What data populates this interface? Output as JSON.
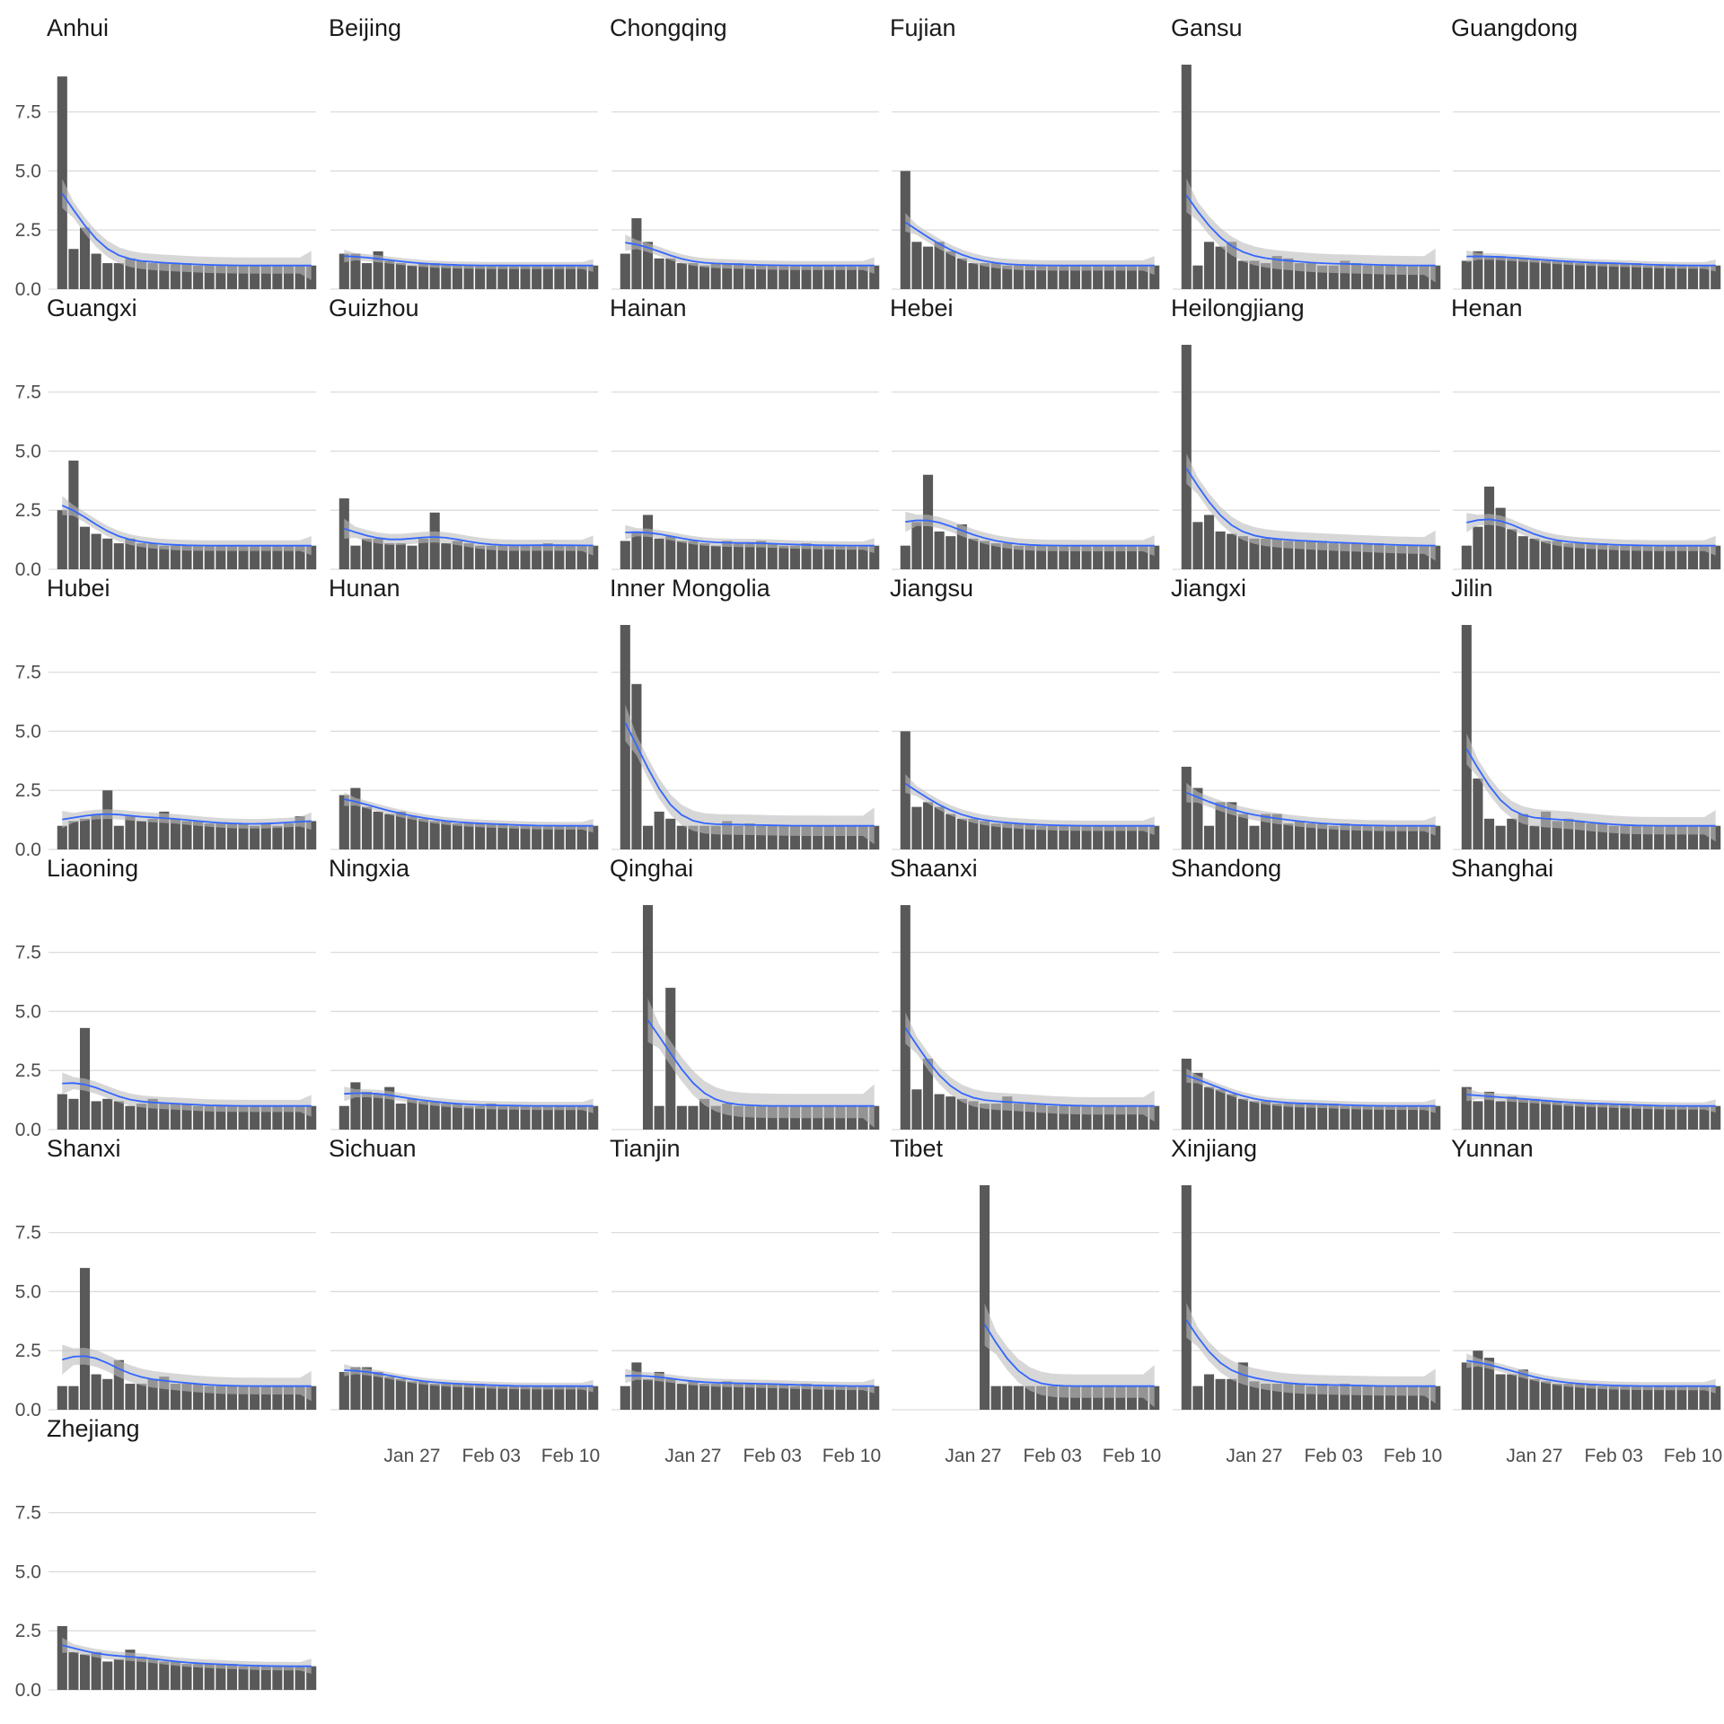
{
  "chart_data": {
    "type": "bar",
    "title": "",
    "xlabel": "",
    "ylabel": "",
    "ylim": [
      0,
      9.5
    ],
    "y_ticks": [
      "0.0",
      "2.5",
      "5.0",
      "7.5"
    ],
    "x_tick_labels": [
      "Jan 27",
      "Feb 03",
      "Feb 10"
    ],
    "x_tick_positions": [
      6,
      13,
      20
    ],
    "days": 23,
    "grid": true,
    "overlay": "loess smooth with confidence band",
    "colors": {
      "bars": "#595959",
      "smooth": "#3366ff",
      "band": "#bdbdbd",
      "grid": "#dcdcdc"
    },
    "panels": [
      {
        "name": "Anhui",
        "values": [
          9.0,
          1.7,
          2.6,
          1.5,
          1.1,
          1.1,
          1.3,
          1.2,
          1.1,
          1.1,
          1.1,
          1.1,
          1.0,
          1.0,
          1.0,
          1.0,
          1.0,
          1.0,
          1.0,
          1.0,
          1.0,
          1.0,
          1.0
        ]
      },
      {
        "name": "Beijing",
        "values": [
          1.5,
          1.5,
          1.1,
          1.6,
          1.2,
          1.1,
          1.0,
          1.1,
          1.1,
          1.0,
          1.0,
          1.0,
          1.0,
          1.0,
          1.0,
          1.0,
          1.0,
          1.0,
          1.0,
          1.0,
          1.0,
          1.0,
          1.0
        ]
      },
      {
        "name": "Chongqing",
        "values": [
          1.5,
          3.0,
          2.0,
          1.3,
          1.3,
          1.1,
          1.1,
          1.0,
          1.1,
          1.1,
          1.1,
          1.0,
          1.0,
          1.0,
          1.0,
          1.0,
          1.0,
          1.0,
          1.0,
          1.0,
          1.0,
          1.0,
          1.0
        ]
      },
      {
        "name": "Fujian",
        "values": [
          5.0,
          2.0,
          1.8,
          2.0,
          1.6,
          1.3,
          1.1,
          1.1,
          1.1,
          1.0,
          1.0,
          1.0,
          1.0,
          1.0,
          1.0,
          1.0,
          1.0,
          1.0,
          1.0,
          1.0,
          1.0,
          1.0,
          1.0
        ]
      },
      {
        "name": "Gansu",
        "values": [
          9.5,
          1.0,
          2.0,
          1.8,
          2.0,
          1.2,
          1.2,
          1.1,
          1.4,
          1.3,
          1.1,
          1.1,
          1.0,
          1.0,
          1.2,
          1.1,
          1.0,
          1.0,
          1.0,
          1.0,
          1.0,
          1.0,
          1.0
        ]
      },
      {
        "name": "Guangdong",
        "values": [
          1.2,
          1.6,
          1.4,
          1.4,
          1.3,
          1.3,
          1.3,
          1.2,
          1.2,
          1.2,
          1.1,
          1.1,
          1.1,
          1.1,
          1.1,
          1.1,
          1.0,
          1.0,
          1.0,
          1.0,
          1.0,
          1.0,
          1.0
        ]
      },
      {
        "name": "Guangxi",
        "values": [
          2.5,
          4.6,
          1.8,
          1.5,
          1.3,
          1.1,
          1.3,
          1.1,
          1.1,
          1.0,
          1.0,
          1.0,
          1.0,
          1.0,
          1.0,
          1.0,
          1.0,
          1.0,
          1.0,
          1.0,
          1.0,
          1.0,
          1.0
        ]
      },
      {
        "name": "Guizhou",
        "values": [
          3.0,
          1.0,
          1.3,
          1.3,
          1.1,
          1.1,
          1.0,
          1.3,
          2.4,
          1.1,
          1.2,
          1.1,
          1.0,
          1.0,
          1.0,
          1.0,
          1.0,
          1.0,
          1.1,
          1.0,
          1.0,
          1.0,
          1.0
        ]
      },
      {
        "name": "Hainan",
        "values": [
          1.2,
          1.6,
          2.3,
          1.3,
          1.4,
          1.2,
          1.2,
          1.1,
          1.0,
          1.2,
          1.1,
          1.1,
          1.2,
          1.1,
          1.0,
          1.0,
          1.1,
          1.0,
          1.0,
          1.0,
          1.0,
          1.0,
          1.0
        ]
      },
      {
        "name": "Hebei",
        "values": [
          1.0,
          2.0,
          4.0,
          1.6,
          1.4,
          1.9,
          1.3,
          1.2,
          1.1,
          1.1,
          1.0,
          1.0,
          1.0,
          1.0,
          1.0,
          1.0,
          1.0,
          1.0,
          1.0,
          1.0,
          1.0,
          1.0,
          1.0
        ]
      },
      {
        "name": "Heilongjiang",
        "values": [
          9.5,
          2.0,
          2.3,
          1.6,
          1.5,
          1.4,
          1.3,
          1.3,
          1.3,
          1.2,
          1.2,
          1.2,
          1.2,
          1.1,
          1.1,
          1.1,
          1.1,
          1.1,
          1.0,
          1.0,
          1.0,
          1.0,
          1.0
        ]
      },
      {
        "name": "Henan",
        "values": [
          1.0,
          1.8,
          3.5,
          2.6,
          1.7,
          1.4,
          1.3,
          1.2,
          1.2,
          1.1,
          1.1,
          1.1,
          1.1,
          1.0,
          1.0,
          1.0,
          1.0,
          1.0,
          1.0,
          1.0,
          1.0,
          1.0,
          1.0
        ]
      },
      {
        "name": "Hubei",
        "values": [
          1.0,
          1.2,
          1.3,
          1.5,
          2.5,
          1.0,
          1.4,
          1.2,
          1.3,
          1.6,
          1.3,
          1.2,
          1.2,
          1.1,
          1.1,
          1.1,
          1.1,
          1.0,
          1.1,
          1.0,
          1.1,
          1.4,
          1.2
        ]
      },
      {
        "name": "Hunan",
        "values": [
          2.3,
          2.6,
          1.8,
          1.6,
          1.5,
          1.6,
          1.4,
          1.3,
          1.2,
          1.2,
          1.1,
          1.1,
          1.1,
          1.1,
          1.1,
          1.0,
          1.0,
          1.0,
          1.0,
          1.0,
          1.0,
          1.0,
          1.0
        ]
      },
      {
        "name": "Inner Mongolia",
        "values": [
          9.5,
          7.0,
          1.0,
          1.6,
          1.3,
          1.0,
          1.0,
          1.0,
          1.0,
          1.2,
          1.0,
          1.1,
          1.0,
          1.0,
          1.0,
          1.0,
          1.0,
          1.0,
          1.0,
          1.0,
          1.0,
          1.0,
          1.0
        ]
      },
      {
        "name": "Jiangsu",
        "values": [
          5.0,
          1.8,
          2.0,
          1.8,
          1.5,
          1.3,
          1.3,
          1.2,
          1.1,
          1.1,
          1.1,
          1.1,
          1.0,
          1.0,
          1.0,
          1.0,
          1.0,
          1.0,
          1.0,
          1.0,
          1.0,
          1.0,
          1.0
        ]
      },
      {
        "name": "Jiangxi",
        "values": [
          3.5,
          2.6,
          1.0,
          2.0,
          2.0,
          1.5,
          1.0,
          1.5,
          1.5,
          1.1,
          1.2,
          1.1,
          1.1,
          1.0,
          1.1,
          1.0,
          1.0,
          1.0,
          1.0,
          1.0,
          1.0,
          1.0,
          1.0
        ]
      },
      {
        "name": "Jilin",
        "values": [
          9.5,
          3.0,
          1.3,
          1.0,
          1.3,
          1.5,
          1.0,
          1.6,
          1.2,
          1.3,
          1.2,
          1.1,
          1.1,
          1.0,
          1.0,
          1.0,
          1.0,
          1.0,
          1.0,
          1.0,
          1.0,
          1.0,
          1.0
        ]
      },
      {
        "name": "Liaoning",
        "values": [
          1.5,
          1.3,
          4.3,
          1.2,
          1.3,
          1.2,
          1.0,
          1.1,
          1.3,
          1.1,
          1.1,
          1.1,
          1.0,
          1.0,
          1.0,
          1.0,
          1.0,
          1.0,
          1.0,
          1.0,
          1.0,
          1.0,
          1.0
        ]
      },
      {
        "name": "Ningxia",
        "values": [
          1.0,
          2.0,
          1.6,
          1.5,
          1.8,
          1.1,
          1.3,
          1.2,
          1.2,
          1.1,
          1.1,
          1.0,
          1.0,
          1.1,
          1.0,
          1.0,
          1.0,
          1.0,
          1.0,
          1.0,
          1.0,
          1.0,
          1.0
        ]
      },
      {
        "name": "Qinghai",
        "values": [
          null,
          null,
          9.5,
          1.0,
          6.0,
          1.0,
          1.0,
          1.3,
          1.0,
          1.1,
          1.0,
          1.0,
          1.0,
          1.0,
          1.0,
          1.0,
          1.0,
          1.0,
          1.0,
          1.0,
          1.0,
          1.0,
          1.0
        ]
      },
      {
        "name": "Shaanxi",
        "values": [
          9.5,
          1.7,
          3.0,
          1.5,
          1.4,
          1.3,
          1.2,
          1.1,
          1.1,
          1.4,
          1.1,
          1.1,
          1.1,
          1.0,
          1.0,
          1.0,
          1.0,
          1.0,
          1.0,
          1.0,
          1.0,
          1.0,
          1.0
        ]
      },
      {
        "name": "Shandong",
        "values": [
          3.0,
          2.4,
          1.8,
          1.7,
          1.5,
          1.3,
          1.2,
          1.2,
          1.1,
          1.1,
          1.1,
          1.1,
          1.1,
          1.1,
          1.0,
          1.0,
          1.0,
          1.0,
          1.0,
          1.0,
          1.0,
          1.0,
          1.0
        ]
      },
      {
        "name": "Shanghai",
        "values": [
          1.8,
          1.2,
          1.6,
          1.2,
          1.4,
          1.3,
          1.3,
          1.2,
          1.2,
          1.1,
          1.1,
          1.1,
          1.1,
          1.1,
          1.1,
          1.0,
          1.0,
          1.0,
          1.0,
          1.0,
          1.0,
          1.0,
          1.0
        ]
      },
      {
        "name": "Shanxi",
        "values": [
          1.0,
          1.0,
          6.0,
          1.5,
          1.3,
          2.1,
          1.1,
          1.1,
          1.3,
          1.4,
          1.1,
          1.1,
          1.1,
          1.0,
          1.0,
          1.0,
          1.0,
          1.0,
          1.0,
          1.0,
          1.0,
          1.0,
          1.0
        ]
      },
      {
        "name": "Sichuan",
        "values": [
          1.6,
          1.8,
          1.8,
          1.6,
          1.4,
          1.3,
          1.2,
          1.2,
          1.1,
          1.1,
          1.1,
          1.1,
          1.1,
          1.0,
          1.0,
          1.0,
          1.0,
          1.0,
          1.0,
          1.0,
          1.0,
          1.0,
          1.0
        ]
      },
      {
        "name": "Tianjin",
        "values": [
          1.0,
          2.0,
          1.3,
          1.6,
          1.3,
          1.1,
          1.2,
          1.1,
          1.1,
          1.2,
          1.1,
          1.1,
          1.1,
          1.1,
          1.1,
          1.0,
          1.1,
          1.0,
          1.0,
          1.0,
          1.0,
          1.0,
          1.0
        ]
      },
      {
        "name": "Tibet",
        "values": [
          null,
          null,
          null,
          null,
          null,
          null,
          null,
          9.5,
          1.0,
          1.0,
          1.0,
          1.0,
          1.0,
          1.0,
          1.0,
          1.0,
          1.0,
          1.0,
          1.0,
          1.0,
          1.0,
          1.0,
          1.0
        ]
      },
      {
        "name": "Xinjiang",
        "values": [
          9.5,
          1.0,
          1.5,
          1.3,
          1.3,
          2.0,
          1.2,
          1.1,
          1.1,
          1.1,
          1.1,
          1.0,
          1.1,
          1.0,
          1.1,
          1.0,
          1.0,
          1.0,
          1.0,
          1.0,
          1.0,
          1.0,
          1.0
        ]
      },
      {
        "name": "Yunnan",
        "values": [
          2.0,
          2.5,
          2.2,
          1.5,
          1.5,
          1.7,
          1.3,
          1.2,
          1.1,
          1.1,
          1.1,
          1.1,
          1.0,
          1.0,
          1.0,
          1.0,
          1.0,
          1.0,
          1.0,
          1.0,
          1.0,
          1.0,
          1.0
        ]
      },
      {
        "name": "Zhejiang",
        "values": [
          2.7,
          1.6,
          1.5,
          1.6,
          1.2,
          1.3,
          1.7,
          1.4,
          1.3,
          1.2,
          1.2,
          1.1,
          1.1,
          1.1,
          1.1,
          1.1,
          1.0,
          1.0,
          1.0,
          1.0,
          1.0,
          1.0,
          1.0
        ]
      }
    ]
  }
}
